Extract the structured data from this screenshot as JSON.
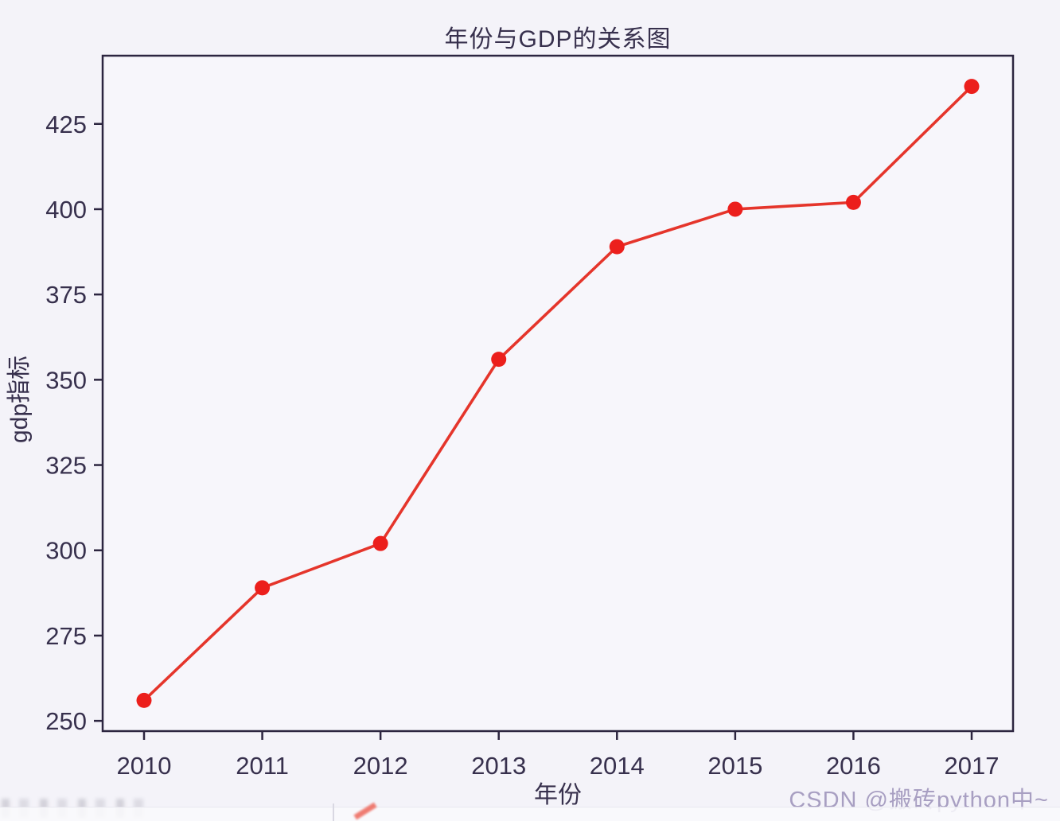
{
  "figure": {
    "title": "年份与GDP的关系图",
    "xlabel": "年份",
    "ylabel": "gdp指标",
    "watermark": "CSDN @搬砖python中~"
  },
  "chart_data": {
    "type": "line",
    "title": "年份与GDP的关系图",
    "xlabel": "年份",
    "ylabel": "gdp指标",
    "x": [
      2010,
      2011,
      2012,
      2013,
      2014,
      2015,
      2016,
      2017
    ],
    "series": [
      {
        "name": "gdp",
        "values": [
          256,
          289,
          302,
          356,
          389,
          400,
          402,
          436
        ]
      }
    ],
    "x_tick_labels": [
      "2010",
      "2011",
      "2012",
      "2013",
      "2014",
      "2015",
      "2016",
      "2017"
    ],
    "y_ticks": [
      250,
      275,
      300,
      325,
      350,
      375,
      400,
      425
    ],
    "xlim": [
      2009.65,
      2017.35
    ],
    "ylim": [
      247,
      445
    ],
    "grid": false,
    "legend": "none",
    "marker": "circle"
  },
  "colors": {
    "line": "#e5352b",
    "marker": "#ec1f1c",
    "frame": "#2c2540",
    "tick_text": "#37304d",
    "plot_background": "#f7f6fb",
    "watermark": "#a89fc2",
    "page_background": "#f4f3f9"
  }
}
